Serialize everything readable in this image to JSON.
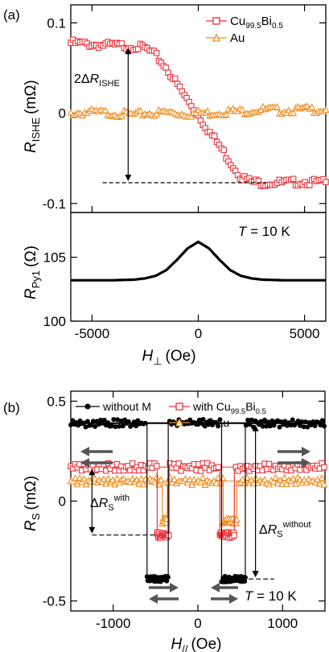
{
  "chart_data": [
    {
      "panel_label": "(a)",
      "type": "line",
      "title": "",
      "x": [
        -6000,
        -5000,
        -4000,
        -3000,
        -2500,
        -2000,
        -1500,
        -1000,
        -500,
        0,
        500,
        1000,
        1500,
        2000,
        2500,
        3000,
        4000,
        5000,
        6000
      ],
      "series": [
        {
          "name": "Cu99.5Bi0.5",
          "name_base": "Cu",
          "name_sub1": "99.5",
          "name_mid": "Bi",
          "name_sub2": "0.5",
          "color": "#e8333a",
          "marker": "square",
          "values": [
            0.078,
            0.076,
            0.075,
            0.074,
            0.072,
            0.064,
            0.05,
            0.032,
            0.014,
            -0.002,
            -0.02,
            -0.036,
            -0.054,
            -0.07,
            -0.076,
            -0.077,
            -0.077,
            -0.076,
            -0.077
          ]
        },
        {
          "name": "Au",
          "color": "#f08c1e",
          "marker": "triangle",
          "values": [
            0.0,
            0.001,
            0.0,
            -0.002,
            0.0,
            0.0,
            0.001,
            0.0,
            -0.001,
            0.0,
            0.0,
            0.001,
            0.002,
            0.002,
            0.003,
            0.004,
            0.003,
            0.004,
            0.004
          ]
        }
      ],
      "ylabel": "R_ISHE (mΩ)",
      "ylabel_base": "R",
      "ylabel_sub": "ISHE",
      "ylabel_unit": "(mΩ)",
      "ylim": [
        -0.11,
        0.12
      ],
      "yticks": [
        "0.1",
        "0",
        "-0.1"
      ],
      "annotation": {
        "prefix": "2Δ",
        "base": "R",
        "sub": "ISHE",
        "baseline_value": -0.077,
        "at_x": -3300
      },
      "legend_position": "top-right"
    },
    {
      "type": "line",
      "x": [
        -6000,
        -5000,
        -4000,
        -3000,
        -2500,
        -2000,
        -1500,
        -1000,
        -500,
        0,
        500,
        1000,
        1500,
        2000,
        2500,
        3000,
        4000,
        5000,
        6000
      ],
      "series": [
        {
          "name": "",
          "color": "#000000",
          "values": [
            103.2,
            103.2,
            103.2,
            103.25,
            103.35,
            103.55,
            104.0,
            104.8,
            105.7,
            106.2,
            105.7,
            104.8,
            104.0,
            103.55,
            103.35,
            103.25,
            103.2,
            103.2,
            103.2
          ]
        }
      ],
      "ylabel_base": "R",
      "ylabel_sub": "Py1",
      "ylabel_unit": "(Ω)",
      "ylim": [
        100,
        108.5
      ],
      "yticks": [
        "105",
        "100"
      ],
      "xticks": [
        "-5000",
        "0",
        "5000"
      ],
      "xlabel_base": "H",
      "xlabel_sub": "⊥",
      "xlabel_unit": "(Oe)",
      "temperature_label": "= 10 K",
      "temperature_symbol": "T"
    },
    {
      "panel_label": "(b)",
      "type": "line",
      "xlim": [
        -1500,
        1500
      ],
      "xticks": [
        "-1000",
        "0",
        "1000"
      ],
      "ylim": [
        -0.55,
        0.55
      ],
      "yticks": [
        "0.5",
        "0",
        "-0.5"
      ],
      "xlabel_base": "H",
      "xlabel_sub": "//",
      "xlabel_unit": "(Oe)",
      "ylabel_base": "R",
      "ylabel_sub": "S",
      "ylabel_unit": "(mΩ)",
      "series": [
        {
          "name": "without M",
          "color": "#000000",
          "marker": "circle",
          "high": 0.39,
          "low": -0.39,
          "switches": [
            -600,
            -350,
            280,
            560
          ]
        },
        {
          "name": "with Cu99.5Bi0.5",
          "name_base": "with Cu",
          "name_sub1": "99.5",
          "name_mid": "Bi",
          "name_sub2": "0.5",
          "color": "#e8333a",
          "marker": "square",
          "high": 0.17,
          "low": -0.17,
          "switches": [
            -480,
            -340,
            260,
            430
          ]
        },
        {
          "name": "with Au",
          "color": "#f08c1e",
          "marker": "triangle",
          "high": 0.1,
          "low": -0.1,
          "switches": [
            -420,
            -360,
            300,
            460
          ]
        }
      ],
      "annotations": [
        {
          "prefix": "Δ",
          "base": "R",
          "sub": "S",
          "sup": "with"
        },
        {
          "prefix": "Δ",
          "base": "R",
          "sub": "S",
          "sup": "without"
        }
      ],
      "temperature_label": "= 10 K",
      "temperature_symbol": "T"
    }
  ]
}
